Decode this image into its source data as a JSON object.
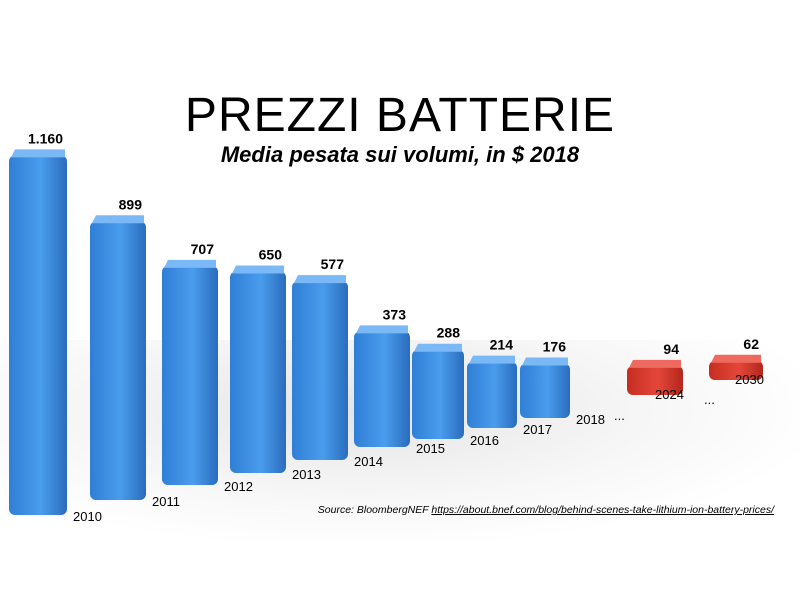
{
  "title": "PREZZI BATTERIE",
  "subtitle": "Media pesata sui volumi, in $ 2018",
  "source": {
    "label": "Source: BloombergNEF",
    "url": "https://about.bnef.com/blog/behind-scenes-take-lithium-ion-battery-prices/"
  },
  "ellipsis": "...",
  "colors": {
    "actual": "#3d8fe0",
    "projection": "#d8382c"
  },
  "chart_data": {
    "type": "bar",
    "title": "PREZZI BATTERIE",
    "subtitle": "Media pesata sui volumi, in $ 2018",
    "categories": [
      "2010",
      "2011",
      "2012",
      "2013",
      "2014",
      "2015",
      "2016",
      "2017",
      "2018",
      "2024",
      "2030"
    ],
    "values": [
      1160,
      899,
      707,
      650,
      577,
      373,
      288,
      214,
      176,
      94,
      62
    ],
    "value_labels": [
      "1.160",
      "899",
      "707",
      "650",
      "577",
      "373",
      "288",
      "214",
      "176",
      "94",
      "62"
    ],
    "series_type": [
      "actual",
      "actual",
      "actual",
      "actual",
      "actual",
      "actual",
      "actual",
      "actual",
      "actual",
      "projection",
      "projection"
    ],
    "xlabel": "",
    "ylabel": "",
    "grid": false,
    "legend": "none"
  }
}
